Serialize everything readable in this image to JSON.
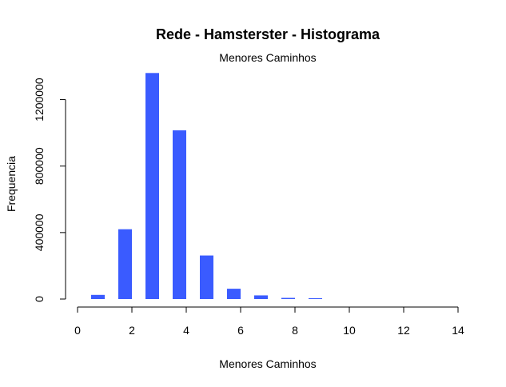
{
  "chart_data": {
    "type": "bar",
    "title": "Rede - Hamsterster - Histograma",
    "subtitle": "Menores Caminhos",
    "xlabel": "Menores Caminhos",
    "ylabel": "Frequencia",
    "xlim": [
      0,
      14
    ],
    "ylim": [
      0,
      1400000
    ],
    "x_ticks": [
      0,
      2,
      4,
      6,
      8,
      10,
      12,
      14
    ],
    "x_tick_labels": [
      "0",
      "2",
      "4",
      "6",
      "8",
      "10",
      "12",
      "14"
    ],
    "y_ticks": [
      0,
      400000,
      800000,
      1200000
    ],
    "y_tick_labels": [
      "0",
      "400000",
      "800000",
      "1200000"
    ],
    "bar_width": 0.5,
    "bar_color": "#3a5bff",
    "x": [
      0.75,
      1.75,
      2.75,
      3.75,
      4.75,
      5.75,
      6.75,
      7.75,
      8.75
    ],
    "values": [
      25000,
      420000,
      1360000,
      1015000,
      262000,
      62000,
      22000,
      7000,
      2000
    ],
    "grid": false,
    "legend": "none"
  }
}
